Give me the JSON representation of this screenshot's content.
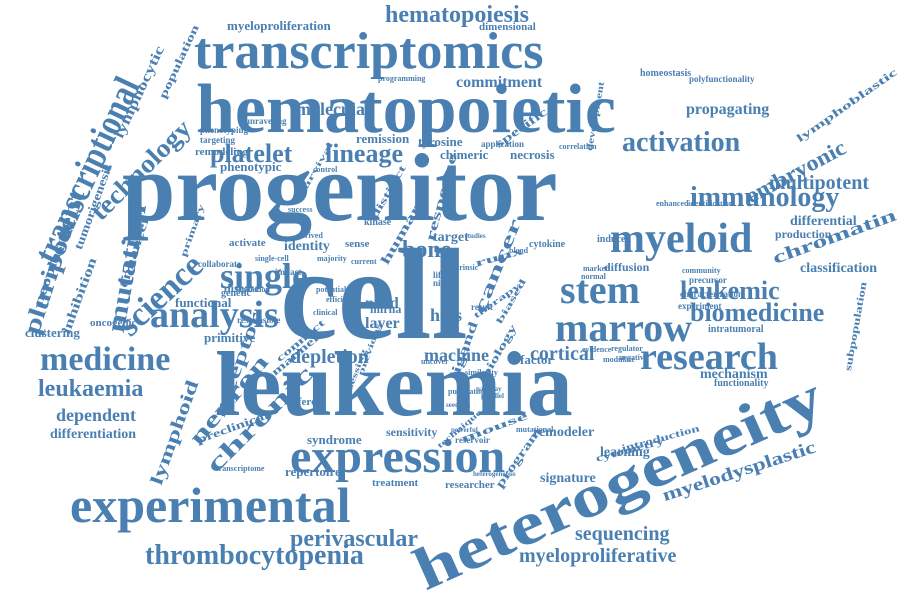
{
  "colors": {
    "word": "#4a7fb2",
    "background": "#ffffff"
  },
  "words": [
    "cell",
    "progenitor",
    "leukemia",
    "hematopoietic",
    "heterogeneity",
    "transcriptomics",
    "expression",
    "experimental",
    "myeloid",
    "stem",
    "marrow",
    "analysis",
    "single",
    "research",
    "medicine",
    "science",
    "transcriptional",
    "activation",
    "immunology",
    "biomedicine",
    "leukemic",
    "platelet",
    "lineage",
    "thrombocytopenia",
    "leukaemia",
    "technology",
    "pluripotent",
    "mutation",
    "bone",
    "embryonic",
    "multipotent",
    "chromatin",
    "cortical",
    "depletion",
    "machine",
    "perivascular",
    "sequencing",
    "myeloproliferative",
    "chronic",
    "neuron",
    "receptor",
    "lymphoid",
    "dependent",
    "differentiation",
    "hematopoiesis",
    "molecular",
    "commitment",
    "propagating",
    "myelodysplastic",
    "mechanism",
    "classification",
    "differential",
    "production",
    "cancer",
    "nurd",
    "layer",
    "mirna",
    "hscs",
    "target",
    "human",
    "identity",
    "activate",
    "sense",
    "signature",
    "learning",
    "remodeler",
    "sensitivity",
    "syndrome",
    "repertoire",
    "treatment",
    "researcher",
    "different",
    "functional",
    "primitive",
    "clustering",
    "oncogenic",
    "enhancer",
    "inhibition",
    "neoplasm",
    "tumorigenesis",
    "phenotypic",
    "remodeling",
    "myeloproliferation",
    "dimensional",
    "lymphocytic",
    "population",
    "remission",
    "tyrosine",
    "necrosis",
    "chimeric",
    "specific",
    "lymphoblastic",
    "polyfunctionality",
    "homeostasis",
    "cytokine",
    "diffusion",
    "induced",
    "intratumoral",
    "subpopulation",
    "functionality",
    "cytometry",
    "introduction",
    "runx",
    "factor",
    "disease",
    "genetic",
    "kinase",
    "distinct",
    "response",
    "application",
    "studies",
    "life",
    "niche",
    "result",
    "biased",
    "regulation",
    "impact",
    "single-cell",
    "mouse",
    "reservoir",
    "mutational",
    "preclinical",
    "transcriptome",
    "programming",
    "correlation",
    "development",
    "uncover",
    "ligand",
    "biology",
    "program",
    "heterogeneous",
    "therapy",
    "evidence",
    "marker",
    "normal",
    "community",
    "precursor",
    "characterization",
    "experiment",
    "regulator",
    "modulate",
    "negative",
    "enhanced",
    "identification",
    "targeting",
    "phenotyping",
    "unraveling",
    "primary",
    "collaborate",
    "responsible",
    "survival",
    "success",
    "efficient",
    "manner",
    "connect",
    "clinical",
    "control",
    "similarity",
    "pathway",
    "parallel",
    "seedling",
    "majority",
    "derived",
    "extrinsic",
    "blood",
    "current",
    "potential",
    "previous",
    "assessing",
    "publication",
    "powerful",
    "technique",
    "comparison"
  ]
}
